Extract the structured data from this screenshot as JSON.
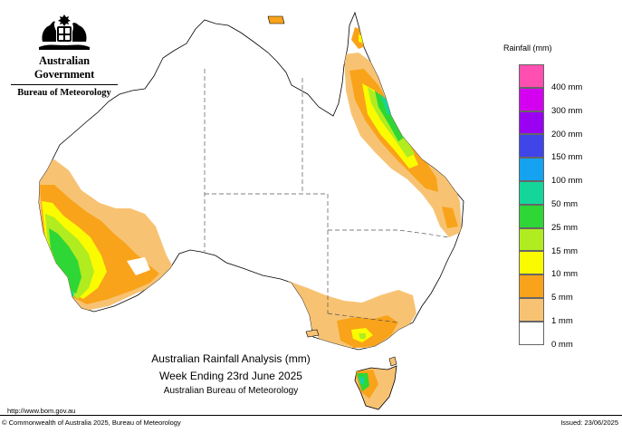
{
  "header": {
    "government": "Australian Government",
    "bureau": "Bureau of Meteorology"
  },
  "legend": {
    "title": "Rainfall (mm)",
    "items": [
      {
        "label": "400 mm",
        "color": "#ff4fb0"
      },
      {
        "label": "300 mm",
        "color": "#d400f0"
      },
      {
        "label": "200 mm",
        "color": "#9a00f2"
      },
      {
        "label": "150 mm",
        "color": "#3f45e8"
      },
      {
        "label": "100 mm",
        "color": "#15a2f0"
      },
      {
        "label": "50 mm",
        "color": "#14d69a"
      },
      {
        "label": "25 mm",
        "color": "#2ed636"
      },
      {
        "label": "15 mm",
        "color": "#b0ec20"
      },
      {
        "label": "10 mm",
        "color": "#fbfb00"
      },
      {
        "label": "5 mm",
        "color": "#f9a31a"
      },
      {
        "label": "1 mm",
        "color": "#f7c373"
      },
      {
        "label": "0 mm",
        "color": "#ffffff"
      }
    ]
  },
  "map": {
    "title_line1": "Australian Rainfall Analysis (mm)",
    "title_line2": "Week Ending 23rd June 2025",
    "title_line3": "Australian Bureau of Meteorology"
  },
  "footer": {
    "url": "http://www.bom.gov.au",
    "copyright": "© Commonwealth of Australia 2025, Bureau of Meteorology",
    "issued": "Issued: 23/06/2025"
  }
}
